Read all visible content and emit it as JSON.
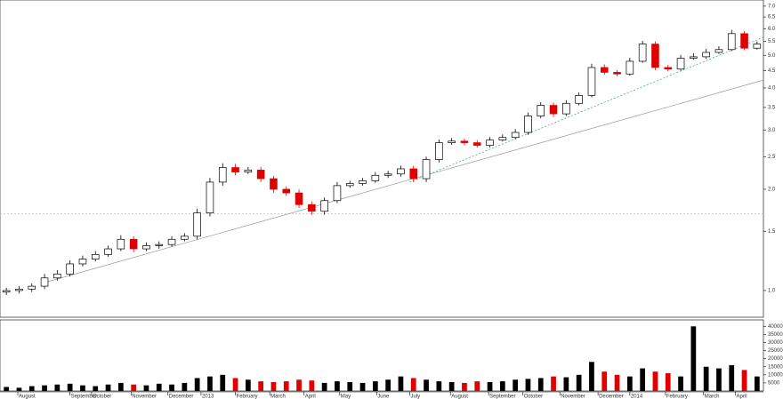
{
  "chart_data": [
    {
      "type": "candlestick",
      "log_scale": true,
      "x": [
        0,
        1,
        2,
        3,
        4,
        5,
        6,
        7,
        8,
        9,
        10,
        11,
        12,
        13,
        14,
        15,
        16,
        17,
        18,
        19,
        20,
        21,
        22,
        23,
        24,
        25,
        26,
        27,
        28,
        29,
        30,
        31,
        32,
        33,
        34,
        35,
        36,
        37,
        38,
        39,
        40,
        41,
        42,
        43,
        44,
        45,
        46,
        47,
        48,
        49,
        50,
        51,
        52,
        53,
        54,
        55,
        56,
        57,
        58,
        59
      ],
      "open": [
        0.99,
        1.0,
        1.01,
        1.03,
        1.09,
        1.12,
        1.2,
        1.24,
        1.28,
        1.33,
        1.42,
        1.33,
        1.36,
        1.37,
        1.42,
        1.45,
        1.7,
        2.1,
        2.32,
        2.25,
        2.28,
        2.15,
        2.0,
        1.95,
        1.8,
        1.72,
        1.85,
        2.05,
        2.08,
        2.12,
        2.2,
        2.22,
        2.3,
        2.15,
        2.45,
        2.75,
        2.78,
        2.75,
        2.7,
        2.8,
        2.85,
        2.95,
        3.3,
        3.55,
        3.35,
        3.6,
        3.8,
        4.6,
        4.45,
        4.4,
        4.8,
        5.4,
        4.6,
        4.55,
        4.9,
        4.95,
        5.1,
        5.2,
        5.8,
        5.25
      ],
      "high": [
        1.02,
        1.03,
        1.05,
        1.12,
        1.15,
        1.23,
        1.27,
        1.31,
        1.36,
        1.46,
        1.45,
        1.39,
        1.4,
        1.45,
        1.48,
        1.75,
        2.16,
        2.39,
        2.38,
        2.33,
        2.33,
        2.19,
        2.04,
        2.0,
        1.84,
        1.89,
        2.1,
        2.12,
        2.16,
        2.25,
        2.27,
        2.35,
        2.35,
        2.5,
        2.81,
        2.84,
        2.83,
        2.8,
        2.86,
        2.91,
        3.02,
        3.38,
        3.63,
        3.62,
        3.68,
        3.88,
        4.72,
        4.7,
        4.52,
        4.92,
        5.52,
        5.5,
        4.68,
        5.02,
        5.07,
        5.22,
        5.32,
        5.95,
        5.9,
        5.5
      ],
      "low": [
        0.97,
        0.98,
        0.99,
        1.01,
        1.07,
        1.1,
        1.18,
        1.22,
        1.26,
        1.31,
        1.3,
        1.31,
        1.33,
        1.35,
        1.4,
        1.42,
        1.66,
        2.05,
        2.2,
        2.22,
        2.1,
        1.95,
        1.91,
        1.76,
        1.68,
        1.68,
        1.82,
        2.02,
        2.05,
        2.09,
        2.16,
        2.18,
        2.1,
        2.1,
        2.4,
        2.71,
        2.7,
        2.66,
        2.66,
        2.77,
        2.81,
        2.9,
        3.25,
        3.28,
        3.3,
        3.55,
        3.75,
        4.38,
        4.33,
        4.35,
        4.75,
        4.52,
        4.48,
        4.5,
        4.85,
        4.88,
        5.05,
        5.15,
        5.18,
        5.2
      ],
      "close": [
        1.0,
        1.01,
        1.03,
        1.09,
        1.12,
        1.2,
        1.24,
        1.28,
        1.33,
        1.42,
        1.33,
        1.36,
        1.37,
        1.42,
        1.45,
        1.7,
        2.1,
        2.32,
        2.25,
        2.28,
        2.15,
        2.0,
        1.95,
        1.8,
        1.72,
        1.85,
        2.05,
        2.08,
        2.12,
        2.2,
        2.22,
        2.3,
        2.15,
        2.45,
        2.75,
        2.78,
        2.75,
        2.7,
        2.8,
        2.85,
        2.95,
        3.3,
        3.55,
        3.35,
        3.6,
        3.8,
        4.6,
        4.45,
        4.4,
        4.8,
        5.4,
        4.6,
        4.55,
        4.9,
        4.95,
        5.1,
        5.2,
        5.8,
        5.25,
        5.4
      ],
      "up_color": "#000000",
      "down_color": "#e00000",
      "xlim": [
        -0.5,
        59.5
      ],
      "ylim": [
        0.833,
        7.3
      ],
      "yticks": [
        {
          "value": 1,
          "label": "1.0"
        },
        1.5,
        {
          "value": 2,
          "label": "2.0"
        },
        2.5,
        {
          "value": 3,
          "label": "3.0"
        },
        3.5,
        {
          "value": 4,
          "label": "4.0"
        },
        4.5,
        {
          "value": 5,
          "label": "5.0"
        },
        5.5,
        {
          "value": 6,
          "label": "6.0"
        },
        6.5,
        {
          "value": 7,
          "label": "7.0"
        }
      ],
      "xticks": [
        {
          "value": 0.9,
          "label": "August"
        },
        {
          "value": 5.0,
          "label": "September"
        },
        {
          "value": 6.7,
          "label": "October"
        },
        {
          "value": 9.8,
          "label": "November"
        },
        {
          "value": 12.7,
          "label": "December"
        },
        {
          "value": 15.3,
          "label": "2013"
        },
        {
          "value": 18.0,
          "label": "February"
        },
        {
          "value": 20.7,
          "label": "March"
        },
        {
          "value": 23.4,
          "label": "April"
        },
        {
          "value": 26.2,
          "label": "May"
        },
        {
          "value": 29.1,
          "label": "June"
        },
        {
          "value": 31.7,
          "label": "July"
        },
        {
          "value": 34.9,
          "label": "August"
        },
        {
          "value": 37.9,
          "label": "September"
        },
        {
          "value": 40.6,
          "label": "October"
        },
        {
          "value": 43.5,
          "label": "November"
        },
        {
          "value": 46.5,
          "label": "December"
        },
        {
          "value": 49.0,
          "label": "2014"
        },
        {
          "value": 51.8,
          "label": "February"
        },
        {
          "value": 54.8,
          "label": "March"
        },
        {
          "value": 57.3,
          "label": "April"
        }
      ],
      "hline": 1.69,
      "trendlines": [
        {
          "color": "#999999",
          "x": [
            3.0,
            59.5
          ],
          "y": [
            1.056,
            4.22
          ]
        },
        {
          "color": "#2aa198",
          "x": [
            31.7,
            59.5
          ],
          "y": [
            2.1,
            5.66
          ]
        }
      ]
    },
    {
      "type": "bar",
      "x": [
        0,
        1,
        2,
        3,
        4,
        5,
        6,
        7,
        8,
        9,
        10,
        11,
        12,
        13,
        14,
        15,
        16,
        17,
        18,
        19,
        20,
        21,
        22,
        23,
        24,
        25,
        26,
        27,
        28,
        29,
        30,
        31,
        32,
        33,
        34,
        35,
        36,
        37,
        38,
        39,
        40,
        41,
        42,
        43,
        44,
        45,
        46,
        47,
        48,
        49,
        50,
        51,
        52,
        53,
        54,
        55,
        56,
        57,
        58,
        59
      ],
      "values": [
        2500,
        2000,
        3000,
        3500,
        4000,
        4500,
        3500,
        3000,
        4000,
        5000,
        4000,
        3500,
        4500,
        4000,
        5000,
        8000,
        9000,
        10000,
        8000,
        7000,
        6000,
        5500,
        6000,
        7000,
        6500,
        5000,
        6000,
        5500,
        5000,
        6000,
        7000,
        9000,
        8000,
        7000,
        6000,
        5500,
        5000,
        6000,
        5500,
        6000,
        7000,
        7500,
        8000,
        9000,
        8500,
        10000,
        18000,
        12000,
        10000,
        9000,
        14000,
        12000,
        11000,
        9000,
        40000,
        15000,
        14000,
        16000,
        13000,
        9000
      ],
      "xlim": [
        -0.5,
        59.5
      ],
      "ylim": [
        0,
        44000
      ],
      "yticks": [
        5000,
        10000,
        15000,
        20000,
        25000,
        30000,
        35000,
        40000
      ]
    }
  ]
}
